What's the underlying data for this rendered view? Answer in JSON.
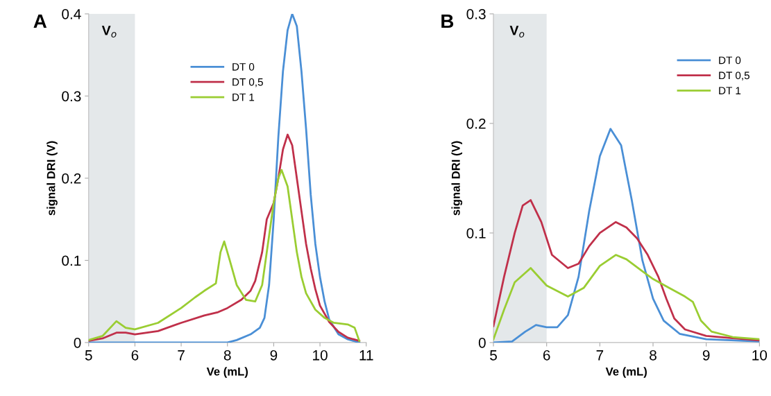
{
  "chart_data": [
    {
      "type": "line",
      "title": "A",
      "xlabel": "Ve (mL)",
      "ylabel": "signal DRI (V)",
      "xlim": [
        5,
        11
      ],
      "ylim": [
        0,
        0.4
      ],
      "xticks": [
        5,
        6,
        7,
        8,
        9,
        10,
        11
      ],
      "yticks": [
        0,
        0.1,
        0.2,
        0.3,
        0.4
      ],
      "grid": false,
      "legend": "top",
      "marker": "none",
      "line_style": "solid",
      "bands": [
        {
          "axis": "x",
          "from": 5,
          "to": 6,
          "label": "V$_{o}$",
          "color": "#e4e8ea"
        }
      ],
      "series": [
        {
          "name": "DT 0",
          "color": "#4a8fd6",
          "x": [
            5,
            8,
            8.2,
            8.5,
            8.7,
            8.8,
            8.9,
            9.0,
            9.1,
            9.2,
            9.3,
            9.4,
            9.5,
            9.6,
            9.7,
            9.8,
            9.9,
            10.0,
            10.1,
            10.2,
            10.4,
            10.6,
            10.85
          ],
          "values": [
            0,
            0,
            0.003,
            0.01,
            0.018,
            0.03,
            0.07,
            0.15,
            0.25,
            0.33,
            0.38,
            0.4,
            0.385,
            0.33,
            0.26,
            0.18,
            0.12,
            0.08,
            0.05,
            0.028,
            0.01,
            0.004,
            0
          ]
        },
        {
          "name": "DT 0,5",
          "color": "#c0304a",
          "x": [
            5,
            5.3,
            5.6,
            5.8,
            6,
            6.5,
            7,
            7.5,
            7.8,
            8,
            8.3,
            8.5,
            8.6,
            8.75,
            8.85,
            9.0,
            9.1,
            9.2,
            9.3,
            9.4,
            9.5,
            9.6,
            9.7,
            9.8,
            9.9,
            10.0,
            10.2,
            10.4,
            10.6,
            10.85
          ],
          "values": [
            0.002,
            0.005,
            0.012,
            0.012,
            0.01,
            0.014,
            0.024,
            0.033,
            0.037,
            0.042,
            0.052,
            0.063,
            0.075,
            0.11,
            0.15,
            0.17,
            0.2,
            0.235,
            0.253,
            0.24,
            0.2,
            0.16,
            0.12,
            0.09,
            0.065,
            0.045,
            0.025,
            0.013,
            0.006,
            0.002
          ]
        },
        {
          "name": "DT 1",
          "color": "#9acd32",
          "x": [
            5,
            5.3,
            5.6,
            5.8,
            6.0,
            6.5,
            7,
            7.3,
            7.5,
            7.75,
            7.85,
            7.93,
            8.05,
            8.2,
            8.4,
            8.6,
            8.75,
            8.9,
            9.0,
            9.1,
            9.17,
            9.3,
            9.4,
            9.5,
            9.6,
            9.7,
            9.9,
            10.1,
            10.3,
            10.6,
            10.75,
            10.85
          ],
          "values": [
            0.003,
            0.008,
            0.026,
            0.018,
            0.016,
            0.024,
            0.042,
            0.055,
            0.063,
            0.072,
            0.11,
            0.123,
            0.1,
            0.07,
            0.052,
            0.05,
            0.07,
            0.13,
            0.17,
            0.2,
            0.21,
            0.19,
            0.15,
            0.11,
            0.08,
            0.06,
            0.04,
            0.03,
            0.024,
            0.022,
            0.018,
            0.002
          ]
        }
      ]
    },
    {
      "type": "line",
      "title": "B",
      "xlabel": "Ve (mL)",
      "ylabel": "signal DRI (V)",
      "xlim": [
        5,
        10
      ],
      "ylim": [
        0,
        0.3
      ],
      "xticks": [
        5,
        6,
        7,
        8,
        9,
        10
      ],
      "yticks": [
        0,
        0.1,
        0.2,
        0.3
      ],
      "grid": false,
      "legend": "top right",
      "marker": "none",
      "line_style": "solid",
      "bands": [
        {
          "axis": "x",
          "from": 5,
          "to": 6,
          "label": "V$_{o}$",
          "color": "#e4e8ea"
        }
      ],
      "series": [
        {
          "name": "DT 0",
          "color": "#4a8fd6",
          "x": [
            5,
            5.35,
            5.6,
            5.8,
            6.0,
            6.2,
            6.4,
            6.6,
            6.8,
            7.0,
            7.2,
            7.4,
            7.6,
            7.8,
            8.0,
            8.2,
            8.5,
            9.0,
            10
          ],
          "values": [
            0,
            0.001,
            0.01,
            0.016,
            0.014,
            0.014,
            0.025,
            0.06,
            0.12,
            0.17,
            0.195,
            0.18,
            0.13,
            0.075,
            0.04,
            0.02,
            0.008,
            0.003,
            0.001
          ]
        },
        {
          "name": "DT 0,5",
          "color": "#c0304a",
          "x": [
            5,
            5.2,
            5.4,
            5.55,
            5.7,
            5.9,
            6.1,
            6.4,
            6.6,
            6.8,
            7.0,
            7.3,
            7.5,
            7.7,
            7.9,
            8.1,
            8.25,
            8.4,
            8.6,
            9.0,
            9.5,
            10
          ],
          "values": [
            0.015,
            0.06,
            0.1,
            0.125,
            0.13,
            0.11,
            0.08,
            0.068,
            0.072,
            0.088,
            0.1,
            0.11,
            0.105,
            0.095,
            0.08,
            0.06,
            0.04,
            0.022,
            0.012,
            0.006,
            0.004,
            0.002
          ]
        },
        {
          "name": "DT 1",
          "color": "#9acd32",
          "x": [
            5,
            5.2,
            5.4,
            5.7,
            6.0,
            6.4,
            6.7,
            7.0,
            7.3,
            7.5,
            7.8,
            8.0,
            8.3,
            8.6,
            8.75,
            8.9,
            9.1,
            9.5,
            10
          ],
          "values": [
            0.003,
            0.03,
            0.055,
            0.068,
            0.052,
            0.042,
            0.05,
            0.07,
            0.08,
            0.076,
            0.065,
            0.058,
            0.05,
            0.042,
            0.037,
            0.02,
            0.01,
            0.005,
            0.003
          ]
        }
      ]
    }
  ]
}
